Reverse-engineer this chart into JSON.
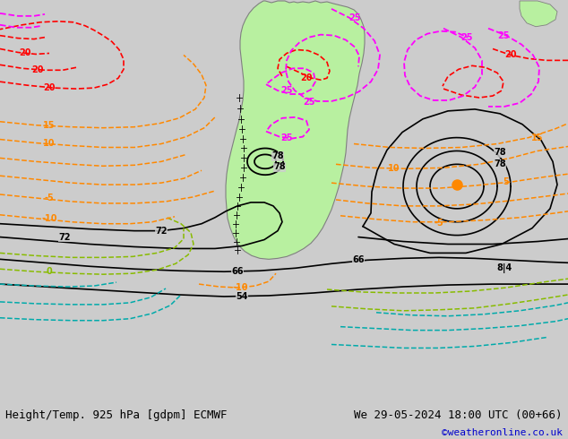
{
  "title_left": "Height/Temp. 925 hPa [gdpm] ECMWF",
  "title_right": "We 29-05-2024 18:00 UTC (00+66)",
  "copyright": "©weatheronline.co.uk",
  "bg_color": "#cccccc",
  "land_color": "#b8f0a0",
  "border_color": "#808080",
  "black": "#000000",
  "orange": "#ff8800",
  "red": "#ff0000",
  "magenta": "#ff00ff",
  "cyan": "#00aaaa",
  "green": "#88bb00",
  "figsize": [
    6.34,
    4.9
  ],
  "dpi": 100
}
